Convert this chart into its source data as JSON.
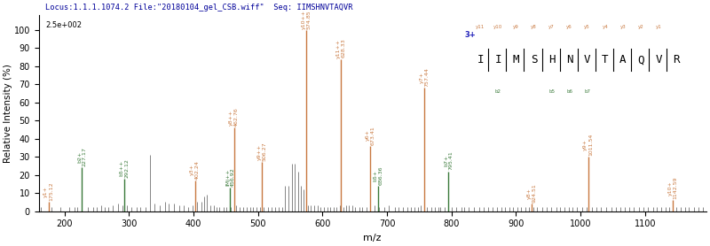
{
  "title": "Locus:1.1.1.1074.2 File:\"20180104_gel_CSB.wiff\"  Seq: IIMSHNVTAQVR",
  "precursor_label": "2.5e+002",
  "xlabel": "m/z",
  "ylabel": "Relative Intensity (%)",
  "xlim": [
    160,
    1195
  ],
  "ylim": [
    0,
    108
  ],
  "background_color": "#ffffff",
  "peptide_sequence": [
    "I",
    "I",
    "M",
    "S",
    "H",
    "N",
    "V",
    "T",
    "A",
    "Q",
    "V",
    "R"
  ],
  "peptide_charge": "3+",
  "orange_peaks": [
    {
      "label": "y1+\n175.12",
      "mz": 175.12,
      "intensity": 5
    },
    {
      "label": "y10++\n574.85",
      "mz": 574.85,
      "intensity": 100
    },
    {
      "label": "y11++\n628.33",
      "mz": 628.33,
      "intensity": 84
    },
    {
      "label": "y8++\n462.76",
      "mz": 462.76,
      "intensity": 46
    },
    {
      "label": "y9++\n506.27",
      "mz": 506.27,
      "intensity": 27
    },
    {
      "label": "y3+\n402.24",
      "mz": 402.24,
      "intensity": 17
    },
    {
      "label": "y6+\n673.41",
      "mz": 673.41,
      "intensity": 36
    },
    {
      "label": "y7+\n757.44",
      "mz": 757.44,
      "intensity": 68
    },
    {
      "label": "y9+\n1011.54",
      "mz": 1011.54,
      "intensity": 30
    },
    {
      "label": "y8+\n924.51",
      "mz": 924.51,
      "intensity": 4
    },
    {
      "label": "y10+\n1142.59",
      "mz": 1142.59,
      "intensity": 6
    }
  ],
  "green_peaks": [
    {
      "label": "b2+\n227.17",
      "mz": 227.17,
      "intensity": 24
    },
    {
      "label": "b5++\n292.12",
      "mz": 292.12,
      "intensity": 18
    },
    {
      "label": "b7+\n795.41",
      "mz": 795.41,
      "intensity": 22
    },
    {
      "label": "b5+\n686.36",
      "mz": 686.36,
      "intensity": 14
    },
    {
      "label": "IMj++\n456.92",
      "mz": 456.92,
      "intensity": 13
    }
  ],
  "noise_peaks_mz": [
    163,
    180,
    193,
    207,
    215,
    220,
    236,
    245,
    250,
    257,
    262,
    268,
    275,
    283,
    290,
    297,
    303,
    312,
    318,
    325,
    332,
    340,
    348,
    356,
    362,
    370,
    378,
    385,
    392,
    398,
    406,
    412,
    417,
    420,
    426,
    431,
    436,
    440,
    447,
    451,
    458,
    466,
    471,
    477,
    483,
    488,
    492,
    497,
    503,
    509,
    515,
    521,
    527,
    532,
    537,
    542,
    547,
    552,
    557,
    562,
    566,
    571,
    577,
    582,
    587,
    592,
    597,
    602,
    607,
    612,
    617,
    622,
    627,
    632,
    636,
    641,
    646,
    651,
    657,
    662,
    668,
    680,
    688,
    696,
    703,
    712,
    718,
    724,
    731,
    737,
    743,
    748,
    752,
    762,
    768,
    774,
    779,
    783,
    789,
    800,
    807,
    815,
    820,
    827,
    835,
    843,
    850,
    857,
    863,
    870,
    877,
    883,
    890,
    895,
    902,
    908,
    915,
    920,
    927,
    932,
    940,
    948,
    955,
    962,
    968,
    975,
    982,
    988,
    995,
    1003,
    1010,
    1018,
    1025,
    1032,
    1040,
    1048,
    1055,
    1062,
    1068,
    1076,
    1082,
    1090,
    1097,
    1105,
    1112,
    1118,
    1125,
    1132,
    1138,
    1148,
    1155,
    1162,
    1168,
    1176,
    1183,
    1190
  ],
  "noise_peaks_int": [
    2,
    2,
    2,
    2,
    2,
    2,
    2,
    2,
    2,
    3,
    2,
    2,
    3,
    4,
    3,
    3,
    2,
    2,
    2,
    2,
    31,
    4,
    3,
    5,
    4,
    4,
    3,
    3,
    2,
    3,
    5,
    5,
    8,
    9,
    3,
    3,
    2,
    2,
    2,
    2,
    2,
    3,
    2,
    2,
    2,
    2,
    2,
    2,
    2,
    2,
    2,
    2,
    2,
    2,
    2,
    14,
    14,
    26,
    26,
    22,
    14,
    12,
    3,
    3,
    3,
    3,
    2,
    2,
    2,
    2,
    2,
    2,
    3,
    2,
    3,
    3,
    3,
    2,
    2,
    2,
    2,
    3,
    2,
    2,
    3,
    2,
    2,
    2,
    2,
    2,
    2,
    2,
    3,
    2,
    2,
    2,
    2,
    2,
    2,
    2,
    2,
    2,
    2,
    2,
    2,
    2,
    2,
    2,
    2,
    2,
    2,
    2,
    2,
    2,
    2,
    2,
    2,
    2,
    2,
    2,
    2,
    2,
    2,
    2,
    2,
    2,
    2,
    2,
    2,
    2,
    2,
    2,
    2,
    2,
    2,
    2,
    2,
    2,
    2,
    2,
    2,
    2,
    2,
    2,
    2,
    2,
    2,
    2,
    2,
    2,
    2,
    2,
    2,
    2,
    2,
    2,
    2,
    2
  ],
  "y_ion_labels_top": [
    "y11",
    "y10",
    "y9",
    "y8",
    "y7",
    "y6",
    "y5",
    "y4",
    "y3",
    "y2",
    "y1"
  ],
  "b_ion_labels_bottom": [
    null,
    "b2",
    null,
    null,
    "b5",
    "b6",
    "b7",
    null,
    null,
    null,
    null,
    null
  ],
  "orange_color": "#c87941",
  "green_color": "#3a7a3a",
  "noise_color": "#555555",
  "title_color": "#000099"
}
